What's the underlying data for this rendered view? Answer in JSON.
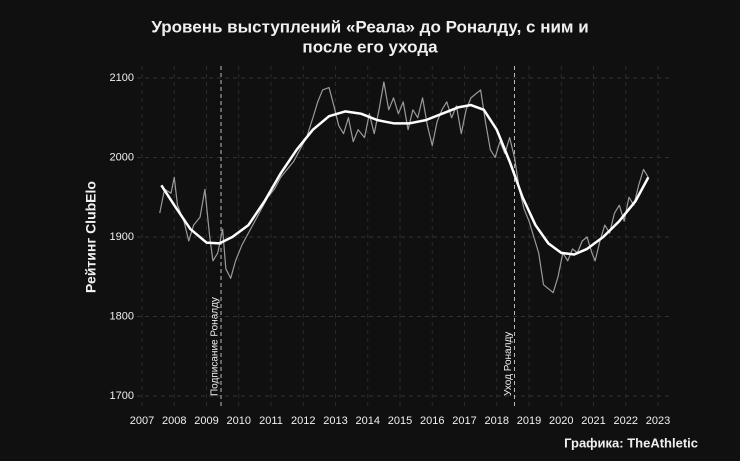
{
  "chart_data": {
    "type": "line",
    "title": [
      "Уровень выступлений «Реала» до Роналду, с ним и",
      "после его ухода"
    ],
    "y_label": "Рейтинг ClubElo",
    "credit": "Графика: TheAthletic",
    "xlim": [
      2007,
      2023
    ],
    "xticks": [
      2007,
      2008,
      2009,
      2010,
      2011,
      2012,
      2013,
      2014,
      2015,
      2016,
      2017,
      2018,
      2019,
      2020,
      2021,
      2022,
      2023
    ],
    "ylim": [
      1700,
      2100
    ],
    "yticks": [
      1700,
      1800,
      1900,
      2000,
      2100
    ],
    "grid": true,
    "series": [
      {
        "color": "#9a9a9a",
        "x": [
          2007.55,
          2007.7,
          2007.9,
          2008.0,
          2008.1,
          2008.3,
          2008.45,
          2008.6,
          2008.8,
          2008.95,
          2009.1,
          2009.2,
          2009.35,
          2009.5,
          2009.6,
          2009.75,
          2009.9,
          2010.1,
          2010.3,
          2010.5,
          2010.7,
          2010.9,
          2011.1,
          2011.3,
          2011.5,
          2011.7,
          2011.9,
          2012.1,
          2012.3,
          2012.45,
          2012.6,
          2012.8,
          2012.95,
          2013.1,
          2013.25,
          2013.4,
          2013.55,
          2013.7,
          2013.9,
          2014.05,
          2014.2,
          2014.35,
          2014.5,
          2014.65,
          2014.8,
          2014.95,
          2015.1,
          2015.25,
          2015.4,
          2015.55,
          2015.7,
          2015.85,
          2016.0,
          2016.15,
          2016.3,
          2016.45,
          2016.6,
          2016.75,
          2016.9,
          2017.05,
          2017.2,
          2017.35,
          2017.5,
          2017.65,
          2017.8,
          2017.95,
          2018.1,
          2018.25,
          2018.4,
          2018.55,
          2018.7,
          2018.85,
          2019.0,
          2019.15,
          2019.3,
          2019.45,
          2019.6,
          2019.75,
          2019.9,
          2020.05,
          2020.2,
          2020.35,
          2020.5,
          2020.65,
          2020.8,
          2020.95,
          2021.05,
          2021.2,
          2021.35,
          2021.5,
          2021.65,
          2021.8,
          2021.95,
          2022.1,
          2022.25,
          2022.4,
          2022.55,
          2022.7
        ],
        "values": [
          1930,
          1960,
          1955,
          1975,
          1940,
          1920,
          1895,
          1915,
          1925,
          1960,
          1900,
          1870,
          1880,
          1910,
          1860,
          1848,
          1870,
          1890,
          1905,
          1920,
          1935,
          1950,
          1960,
          1975,
          1985,
          1995,
          2010,
          2025,
          2050,
          2070,
          2085,
          2088,
          2065,
          2040,
          2030,
          2050,
          2020,
          2035,
          2025,
          2055,
          2030,
          2060,
          2095,
          2060,
          2075,
          2055,
          2070,
          2035,
          2060,
          2050,
          2075,
          2040,
          2015,
          2045,
          2060,
          2070,
          2050,
          2065,
          2030,
          2060,
          2075,
          2080,
          2085,
          2045,
          2010,
          2000,
          2020,
          2005,
          2025,
          2000,
          1960,
          1935,
          1920,
          1900,
          1880,
          1840,
          1835,
          1830,
          1850,
          1880,
          1870,
          1885,
          1880,
          1895,
          1900,
          1880,
          1870,
          1895,
          1915,
          1905,
          1930,
          1940,
          1920,
          1950,
          1940,
          1965,
          1985,
          1975
        ]
      },
      {
        "color": "#ffffff",
        "x": [
          2007.6,
          2008.0,
          2008.5,
          2009.0,
          2009.4,
          2009.8,
          2010.3,
          2010.8,
          2011.3,
          2011.8,
          2012.3,
          2012.8,
          2013.3,
          2013.8,
          2014.3,
          2014.8,
          2015.3,
          2015.8,
          2016.3,
          2016.8,
          2017.2,
          2017.6,
          2018.0,
          2018.4,
          2018.8,
          2019.2,
          2019.6,
          2020.0,
          2020.4,
          2020.8,
          2021.3,
          2021.8,
          2022.3,
          2022.7
        ],
        "values": [
          1965,
          1940,
          1910,
          1893,
          1892,
          1900,
          1915,
          1945,
          1980,
          2010,
          2035,
          2052,
          2058,
          2055,
          2047,
          2043,
          2043,
          2047,
          2055,
          2063,
          2066,
          2060,
          2035,
          1995,
          1950,
          1915,
          1892,
          1880,
          1878,
          1885,
          1900,
          1920,
          1945,
          1975
        ]
      }
    ],
    "annotations": [
      {
        "x": 2009.45,
        "label": "Подписание Роналду"
      },
      {
        "x": 2018.55,
        "label": "Уход Роналду"
      }
    ]
  }
}
